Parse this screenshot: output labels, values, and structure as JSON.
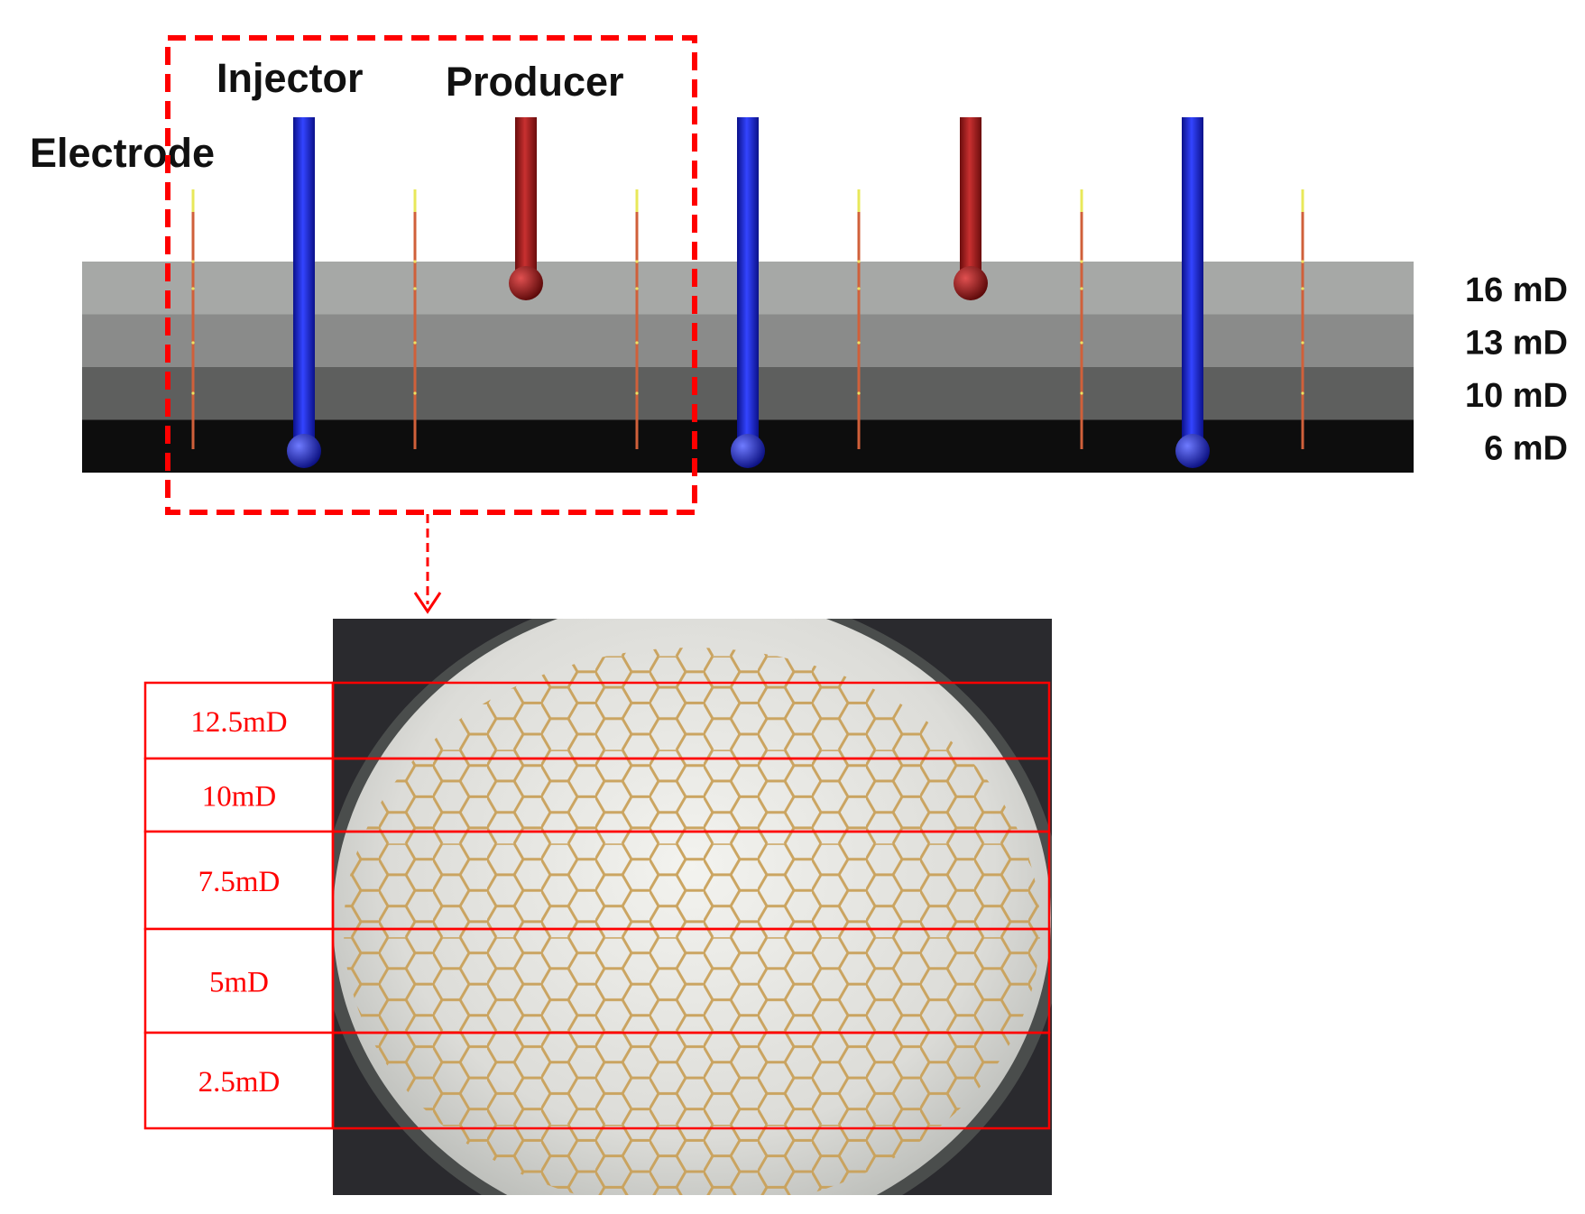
{
  "labels": {
    "injector": "Injector",
    "producer": "Producer",
    "electrode": "Electrode"
  },
  "reservoir_layers": [
    {
      "label": "16 mD",
      "color": "#a6a8a6"
    },
    {
      "label": "13 mD",
      "color": "#8a8b8a"
    },
    {
      "label": "10 mD",
      "color": "#5e5f5e"
    },
    {
      "label": "6 mD",
      "color": "#0d0d0d"
    }
  ],
  "micromodel_zones": [
    {
      "label": "12.5mD"
    },
    {
      "label": "10mD"
    },
    {
      "label": "7.5mD"
    },
    {
      "label": "5mD"
    },
    {
      "label": "2.5mD"
    }
  ],
  "colors": {
    "injector": "#1a23c8",
    "producer": "#a01a1a",
    "highlight": "#ff0000",
    "hex_lines": "#c9a15a"
  }
}
